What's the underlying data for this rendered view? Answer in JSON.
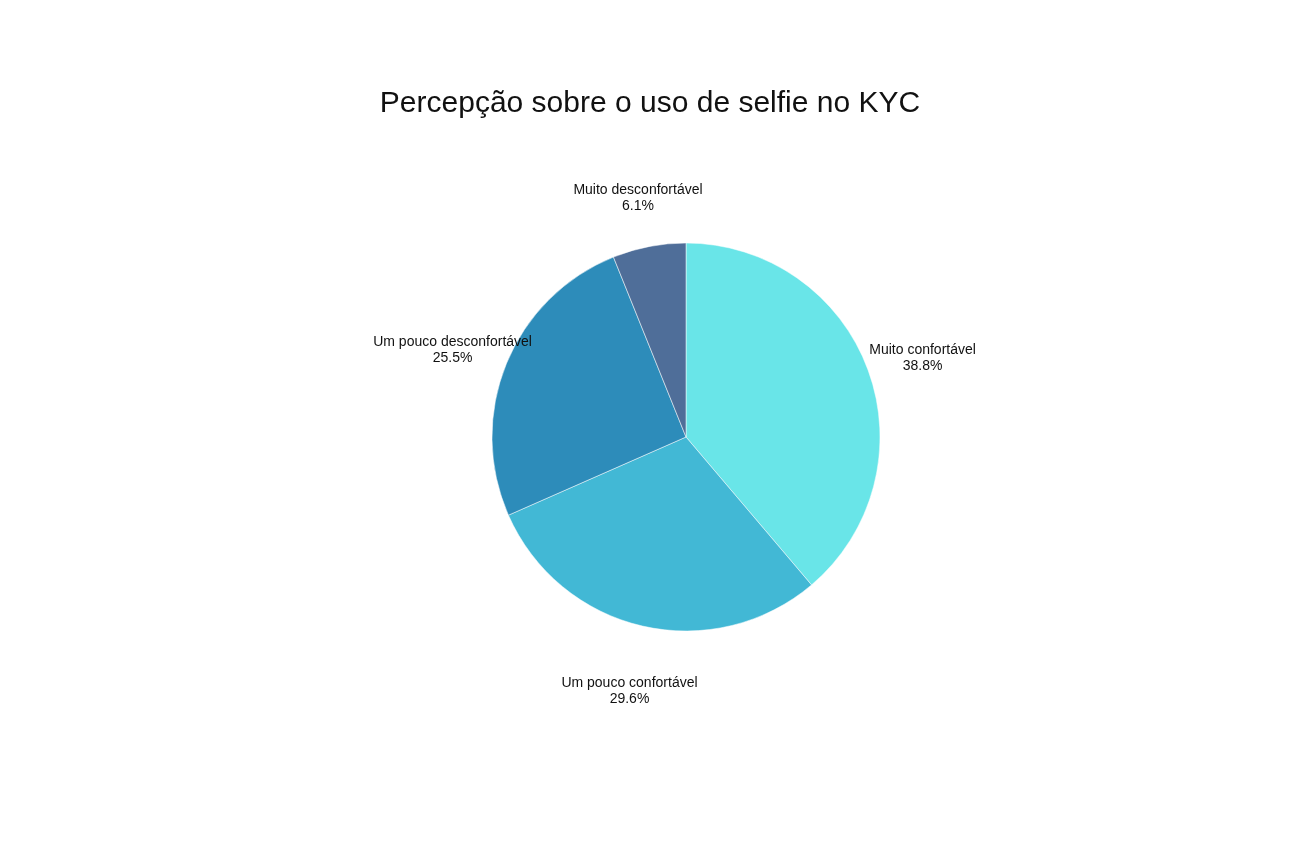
{
  "chart_data": {
    "type": "pie",
    "title": "Percepção sobre o uso de selfie no KYC",
    "categories": [
      "Muito confortável",
      "Um pouco confortável",
      "Um pouco desconfortável",
      "Muito desconfortável"
    ],
    "values": [
      38.8,
      29.6,
      25.5,
      6.1
    ],
    "value_labels": [
      "38.8%",
      "29.6%",
      "25.5%",
      "6.1%"
    ],
    "colors": [
      "#69e5e8",
      "#42b8d5",
      "#2d8cba",
      "#4f6e99"
    ]
  }
}
